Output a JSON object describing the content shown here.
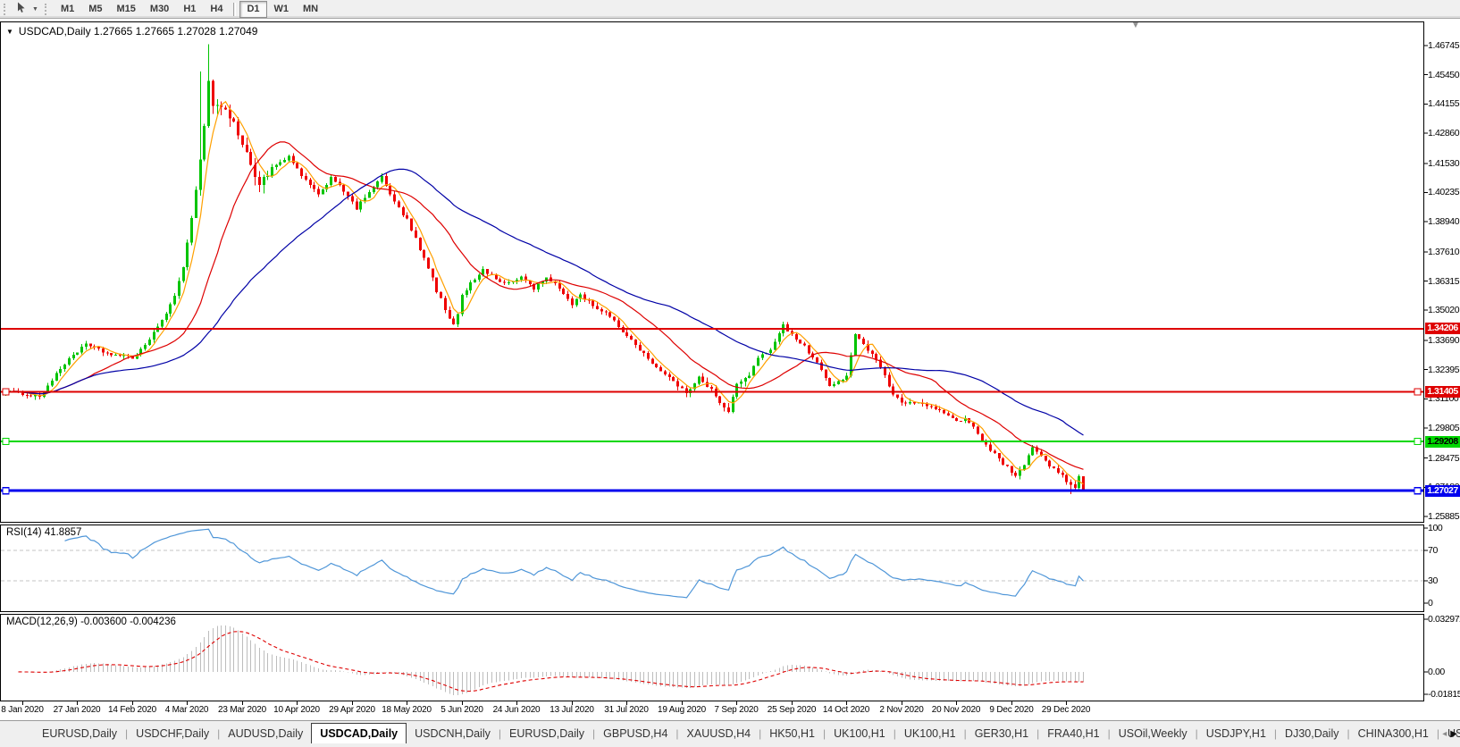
{
  "toolbar": {
    "timeframes": [
      "M1",
      "M5",
      "M15",
      "M30",
      "H1",
      "H4",
      "D1",
      "W1",
      "MN"
    ],
    "active_timeframe": "D1",
    "caret_icon": "▼"
  },
  "chart": {
    "title_text": "USDCAD,Daily  1.27665 1.27665 1.27028 1.27049",
    "symbol": "USDCAD",
    "period": "Daily",
    "open": "1.27665",
    "high": "1.27665",
    "low": "1.27028",
    "close": "1.27049",
    "collapse_icon": "▼",
    "shift_marker_icon": "▼",
    "price_axis_labels": [
      "1.46745",
      "1.45450",
      "1.44155",
      "1.42860",
      "1.41530",
      "1.40235",
      "1.38940",
      "1.37610",
      "1.36315",
      "1.35020",
      "1.33690",
      "1.32395",
      "1.31100",
      "1.29805",
      "1.28475",
      "1.27180",
      "1.25885"
    ],
    "hlines": [
      {
        "price": 1.34206,
        "badge": "1.34206",
        "color": "#DE0000",
        "text_color": "#FFFFFF",
        "thickness": 2,
        "marker": false
      },
      {
        "price": 1.31405,
        "badge": "1.31405",
        "color": "#DE0000",
        "text_color": "#FFFFFF",
        "thickness": 2,
        "marker": true
      },
      {
        "price": 1.29208,
        "badge": "1.29208",
        "color": "#00D800",
        "text_color": "#000000",
        "thickness": 2,
        "marker": true
      },
      {
        "price": 1.27027,
        "badge": "1.27027",
        "color": "#0000EE",
        "text_color": "#FFFFFF",
        "thickness": 3,
        "marker": true
      }
    ],
    "colors": {
      "up": "#00C400",
      "down": "#EF0000",
      "ma_fast": "#FFA000",
      "ma_mid": "#DE0000",
      "ma_slow": "#0000A6",
      "rsi_line": "#4F96D8",
      "macd_hist": "#BDBDBD",
      "macd_signal": "#DE0000",
      "level_dash": "#C4C4C4"
    }
  },
  "rsi": {
    "label": "RSI(14) 41.8857",
    "axis_labels": [
      {
        "value": 100,
        "text": "100"
      },
      {
        "value": 70,
        "text": "70"
      },
      {
        "value": 30,
        "text": "30"
      },
      {
        "value": 0,
        "text": "0"
      }
    ],
    "level_lines": [
      70,
      30
    ]
  },
  "macd": {
    "label": "MACD(12,26,9) -0.003600 -0.004236",
    "axis_labels": [
      {
        "text": "0.032972",
        "value": 0.032972
      },
      {
        "text": "0.00",
        "value": 0
      },
      {
        "text": "-0.01815",
        "value": -0.01815
      }
    ]
  },
  "date_axis": [
    "8 Jan 2020",
    "27 Jan 2020",
    "14 Feb 2020",
    "4 Mar 2020",
    "23 Mar 2020",
    "10 Apr 2020",
    "29 Apr 2020",
    "18 May 2020",
    "5 Jun 2020",
    "24 Jun 2020",
    "13 Jul 2020",
    "31 Jul 2020",
    "19 Aug 2020",
    "7 Sep 2020",
    "25 Sep 2020",
    "14 Oct 2020",
    "2 Nov 2020",
    "20 Nov 2020",
    "9 Dec 2020",
    "29 Dec 2020"
  ],
  "tabs": {
    "items": [
      "EURUSD,Daily",
      "USDCHF,Daily",
      "AUDUSD,Daily",
      "USDCAD,Daily",
      "USDCNH,Daily",
      "EURUSD,Daily",
      "GBPUSD,H4",
      "XAUUSD,H4",
      "HK50,H1",
      "UK100,H1",
      "UK100,H1",
      "GER30,H1",
      "FRA40,H1",
      "USOil,Weekly",
      "USDJPY,H1",
      "DJ30,Daily",
      "CHINA300,H1",
      "USOil,"
    ],
    "active_index": 3,
    "scroll_left_icon": "◂",
    "scroll_right_icon": "▶"
  },
  "chart_data": {
    "type": "candlestick",
    "symbol": "USDCAD",
    "timeframe": "Daily",
    "x_range": [
      "8 Jan 2020",
      "8 Jan 2021"
    ],
    "y_ticks": [
      1.46745,
      1.4545,
      1.44155,
      1.4286,
      1.4153,
      1.40235,
      1.3894,
      1.3761,
      1.36315,
      1.3502,
      1.3369,
      1.32395,
      1.311,
      1.29805,
      1.28475,
      1.2718,
      1.25885
    ],
    "last_quote": {
      "open": 1.27665,
      "high": 1.27665,
      "low": 1.27028,
      "close": 1.27049
    },
    "peak_high": 1.468,
    "horizontal_levels": [
      1.34206,
      1.31405,
      1.29208,
      1.27027
    ],
    "close_anchors": [
      [
        0,
        1.3145
      ],
      [
        8,
        1.312
      ],
      [
        15,
        1.329
      ],
      [
        19,
        1.335
      ],
      [
        24,
        1.331
      ],
      [
        30,
        1.329
      ],
      [
        34,
        1.337
      ],
      [
        37,
        1.346
      ],
      [
        40,
        1.356
      ],
      [
        42,
        1.369
      ],
      [
        44,
        1.3925
      ],
      [
        46,
        1.416
      ],
      [
        48,
        1.451
      ],
      [
        49,
        1.442
      ],
      [
        52,
        1.439
      ],
      [
        54,
        1.433
      ],
      [
        57,
        1.419
      ],
      [
        60,
        1.4065
      ],
      [
        63,
        1.413
      ],
      [
        67,
        1.418
      ],
      [
        70,
        1.41
      ],
      [
        74,
        1.401
      ],
      [
        77,
        1.409
      ],
      [
        79,
        1.406
      ],
      [
        83,
        1.395
      ],
      [
        86,
        1.403
      ],
      [
        89,
        1.409
      ],
      [
        92,
        1.398
      ],
      [
        95,
        1.39
      ],
      [
        98,
        1.377
      ],
      [
        101,
        1.364
      ],
      [
        104,
        1.35
      ],
      [
        106,
        1.343
      ],
      [
        108,
        1.356
      ],
      [
        110,
        1.363
      ],
      [
        113,
        1.368
      ],
      [
        116,
        1.364
      ],
      [
        119,
        1.362
      ],
      [
        122,
        1.365
      ],
      [
        125,
        1.36
      ],
      [
        128,
        1.3645
      ],
      [
        131,
        1.36
      ],
      [
        134,
        1.353
      ],
      [
        136,
        1.357
      ],
      [
        140,
        1.351
      ],
      [
        142,
        1.349
      ],
      [
        146,
        1.341
      ],
      [
        149,
        1.335
      ],
      [
        152,
        1.329
      ],
      [
        155,
        1.323
      ],
      [
        158,
        1.319
      ],
      [
        161,
        1.313
      ],
      [
        164,
        1.321
      ],
      [
        167,
        1.315
      ],
      [
        169,
        1.309
      ],
      [
        171,
        1.305
      ],
      [
        173,
        1.318
      ],
      [
        176,
        1.321
      ],
      [
        178,
        1.329
      ],
      [
        181,
        1.333
      ],
      [
        184,
        1.344
      ],
      [
        186,
        1.339
      ],
      [
        189,
        1.334
      ],
      [
        192,
        1.327
      ],
      [
        195,
        1.3165
      ],
      [
        199,
        1.321
      ],
      [
        201,
        1.339
      ],
      [
        204,
        1.333
      ],
      [
        206,
        1.329
      ],
      [
        208,
        1.321
      ],
      [
        210,
        1.313
      ],
      [
        213,
        1.3085
      ],
      [
        216,
        1.31
      ],
      [
        219,
        1.307
      ],
      [
        222,
        1.305
      ],
      [
        225,
        1.3005
      ],
      [
        227,
        1.3025
      ],
      [
        229,
        1.2985
      ],
      [
        231,
        1.2925
      ],
      [
        233,
        1.288
      ],
      [
        235,
        1.2845
      ],
      [
        237,
        1.2805
      ],
      [
        239,
        1.2765
      ],
      [
        241,
        1.281
      ],
      [
        243,
        1.29
      ],
      [
        245,
        1.2855
      ],
      [
        247,
        1.281
      ],
      [
        249,
        1.2785
      ],
      [
        251,
        1.2745
      ],
      [
        253,
        1.2715
      ],
      [
        254,
        1.27665
      ],
      [
        255,
        1.27049
      ]
    ],
    "indicators": [
      {
        "name": "RSI",
        "period": 14,
        "current": 41.8857,
        "levels": [
          70,
          30
        ],
        "range": [
          0,
          100
        ]
      },
      {
        "name": "MACD",
        "fast": 12,
        "slow": 26,
        "signal": 9,
        "current_macd": -0.0036,
        "current_signal": -0.004236,
        "axis_max": 0.032972,
        "axis_min": -0.01815
      },
      {
        "name": "MovingAverages",
        "periods": [
          5,
          20,
          50
        ]
      }
    ]
  }
}
